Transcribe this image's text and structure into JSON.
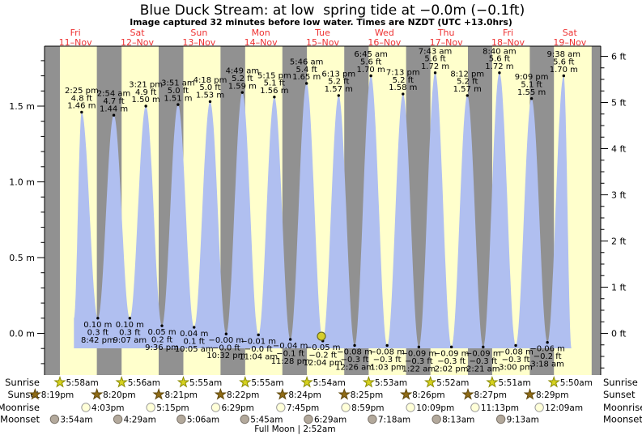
{
  "title": "Blue Duck Stream: at low  spring tide at −0.0m (−0.1ft)",
  "subtitle": "Image captured 32 minutes before low water. Times are NZDT (UTC +13.0hrs)",
  "colors": {
    "day_band": "#ffffcc",
    "night_band": "#919191",
    "tide_fill": "#b0bff0",
    "day_label_red": "#ee3333",
    "sunrise_star_fill": "#d6d21f",
    "sunrise_star_stroke": "#8a8a00",
    "sunset_star_fill": "#8f6b16",
    "sunset_star_stroke": "#5f470a",
    "moonrise_circle_fill": "#ffffd8",
    "moonrise_circle_stroke": "#999999",
    "moonset_circle_fill": "#b3a99c",
    "moonset_circle_stroke": "#7a7268",
    "current_dot_fill": "#d6ce2b",
    "current_dot_stroke": "#6b6b1c"
  },
  "chart_data": {
    "type": "area",
    "x_axis_days": [
      {
        "weekday": "Fri",
        "date": "11–Nov"
      },
      {
        "weekday": "Sat",
        "date": "12–Nov"
      },
      {
        "weekday": "Sun",
        "date": "13–Nov"
      },
      {
        "weekday": "Mon",
        "date": "14–Nov"
      },
      {
        "weekday": "Tue",
        "date": "15–Nov"
      },
      {
        "weekday": "Wed",
        "date": "16–Nov"
      },
      {
        "weekday": "Thu",
        "date": "17–Nov"
      },
      {
        "weekday": "Fri",
        "date": "18–Nov"
      },
      {
        "weekday": "Sat",
        "date": "19–Nov"
      }
    ],
    "y_axis_left": {
      "unit": "m",
      "tick_labels": [
        "0.0 m",
        "0.5 m",
        "1.0 m",
        "1.5 m"
      ],
      "tick_values": [
        0,
        0.5,
        1.0,
        1.5
      ],
      "minor_step": 0.1
    },
    "y_axis_right": {
      "unit": "ft",
      "tick_labels": [
        "0 ft",
        "1 ft",
        "2 ft",
        "3 ft",
        "4 ft",
        "5 ft",
        "6 ft"
      ],
      "tick_values": [
        0,
        1,
        2,
        3,
        4,
        5,
        6
      ],
      "minor_step": 0.25
    },
    "tide_events": [
      {
        "type": "high",
        "t_hours": 14.417,
        "height_m": 1.46,
        "labels": [
          "2:25 pm",
          "4.8 ft",
          "1.46 m"
        ]
      },
      {
        "type": "low",
        "t_hours": 20.7,
        "height_m": 0.1,
        "labels": [
          "0.10 m",
          "0.3 ft",
          "8:42 pm"
        ]
      },
      {
        "type": "high",
        "t_hours": 26.9,
        "height_m": 1.44,
        "labels": [
          "2:54 am",
          "4.7 ft",
          "1.44 m"
        ]
      },
      {
        "type": "low",
        "t_hours": 33.117,
        "height_m": 0.1,
        "labels": [
          "0.10 m",
          "0.3 ft",
          "9:07 am"
        ]
      },
      {
        "type": "high",
        "t_hours": 39.35,
        "height_m": 1.5,
        "labels": [
          "3:21 pm",
          "4.9 ft",
          "1.50 m"
        ]
      },
      {
        "type": "low",
        "t_hours": 45.6,
        "height_m": 0.05,
        "labels": [
          "0.05 m",
          "0.2 ft",
          "9:36 pm"
        ]
      },
      {
        "type": "high",
        "t_hours": 51.85,
        "height_m": 1.51,
        "labels": [
          "3:51 am",
          "5.0 ft",
          "1.51 m"
        ]
      },
      {
        "type": "low",
        "t_hours": 58.083,
        "height_m": 0.04,
        "labels": [
          "0.04 m",
          "0.1 ft",
          "10:05 am"
        ]
      },
      {
        "type": "high",
        "t_hours": 64.3,
        "height_m": 1.53,
        "labels": [
          "4:18 pm",
          "5.0 ft",
          "1.53 m"
        ]
      },
      {
        "type": "low",
        "t_hours": 70.533,
        "height_m": -0.004,
        "labels": [
          "−0.00 m",
          "−0.0 ft",
          "10:32 pm"
        ]
      },
      {
        "type": "high",
        "t_hours": 76.817,
        "height_m": 1.59,
        "labels": [
          "4:49 am",
          "5.2 ft",
          "1.59 m"
        ]
      },
      {
        "type": "low",
        "t_hours": 83.067,
        "height_m": -0.01,
        "labels": [
          "−0.01 m",
          "−0.0 ft",
          "11:04 am"
        ]
      },
      {
        "type": "high",
        "t_hours": 89.25,
        "height_m": 1.56,
        "labels": [
          "5:15 pm",
          "5.1 ft",
          "1.56 m"
        ]
      },
      {
        "type": "low",
        "t_hours": 95.467,
        "height_m": -0.04,
        "labels": [
          "−0.04 m",
          "−0.1 ft",
          "11:28 pm"
        ]
      },
      {
        "type": "high",
        "t_hours": 101.767,
        "height_m": 1.65,
        "labels": [
          "5:46 am",
          "5.4 ft",
          "1.65 m"
        ]
      },
      {
        "type": "low",
        "t_hours": 108.067,
        "height_m": -0.05,
        "labels": [
          "−0.05 m",
          "−0.2 ft",
          "12:04 pm"
        ]
      },
      {
        "type": "high",
        "t_hours": 114.217,
        "height_m": 1.57,
        "labels": [
          "6:13 pm",
          "5.2 ft",
          "1.57 m"
        ]
      },
      {
        "type": "low",
        "t_hours": 120.433,
        "height_m": -0.08,
        "labels": [
          "−0.08 m",
          "−0.3 ft",
          "12:26 am"
        ]
      },
      {
        "type": "high",
        "t_hours": 126.75,
        "height_m": 1.7,
        "labels": [
          "6:45 am",
          "5.6 ft",
          "1.70 m"
        ]
      },
      {
        "type": "low",
        "t_hours": 133.05,
        "height_m": -0.08,
        "labels": [
          "−0.08 m",
          "−0.3 ft",
          "1:03 pm"
        ]
      },
      {
        "type": "high",
        "t_hours": 139.217,
        "height_m": 1.58,
        "labels": [
          "7:13 pm",
          "5.2 ft",
          "1.58 m"
        ]
      },
      {
        "type": "low",
        "t_hours": 145.367,
        "height_m": -0.09,
        "labels": [
          "−0.09 m",
          "−0.3 ft",
          "1:22 am"
        ]
      },
      {
        "type": "high",
        "t_hours": 151.717,
        "height_m": 1.72,
        "labels": [
          "7:43 am",
          "5.6 ft",
          "1.72 m"
        ]
      },
      {
        "type": "low",
        "t_hours": 158.033,
        "height_m": -0.09,
        "labels": [
          "−0.09 m",
          "−0.3 ft",
          "2:02 pm"
        ]
      },
      {
        "type": "high",
        "t_hours": 164.2,
        "height_m": 1.57,
        "labels": [
          "8:12 pm",
          "5.2 ft",
          "1.57 m"
        ]
      },
      {
        "type": "low",
        "t_hours": 170.35,
        "height_m": -0.09,
        "labels": [
          "−0.09 m",
          "−0.3 ft",
          "2:21 am"
        ]
      },
      {
        "type": "high",
        "t_hours": 176.667,
        "height_m": 1.72,
        "labels": [
          "8:40 am",
          "5.6 ft",
          "1.72 m"
        ]
      },
      {
        "type": "low",
        "t_hours": 183.0,
        "height_m": -0.08,
        "labels": [
          "−0.08 m",
          "−0.3 ft",
          "3:00 pm"
        ]
      },
      {
        "type": "high",
        "t_hours": 189.15,
        "height_m": 1.55,
        "labels": [
          "9:09 pm",
          "5.1 ft",
          "1.55 m"
        ]
      },
      {
        "type": "low",
        "t_hours": 195.3,
        "height_m": -0.06,
        "labels": [
          "−0.06 m",
          "−0.2 ft",
          "3:18 am"
        ]
      },
      {
        "type": "high",
        "t_hours": 201.633,
        "height_m": 1.7,
        "labels": [
          "9:38 am",
          "5.6 ft",
          "1.70 m"
        ]
      }
    ],
    "series_bounds": {
      "start": {
        "t_hours": 11.417,
        "height_m": 0.1
      },
      "end": {
        "t_hours": 204.633,
        "height_m": -0.099
      }
    },
    "current_marker": {
      "t_hours": 107.533,
      "height_m": -0.019
    }
  },
  "sun_moon": {
    "row_label_sunrise": "Sunrise",
    "row_label_sunset": "Sunset",
    "row_label_moonrise": "Moonrise",
    "row_label_moonset": "Moonset",
    "sunrise": [
      {
        "time": "5:58am",
        "day": 0,
        "hour": 5.967
      },
      {
        "time": "5:56am",
        "day": 1,
        "hour": 5.933
      },
      {
        "time": "5:55am",
        "day": 2,
        "hour": 5.917
      },
      {
        "time": "5:55am",
        "day": 3,
        "hour": 5.917
      },
      {
        "time": "5:54am",
        "day": 4,
        "hour": 5.9
      },
      {
        "time": "5:53am",
        "day": 5,
        "hour": 5.883
      },
      {
        "time": "5:52am",
        "day": 6,
        "hour": 5.867
      },
      {
        "time": "5:51am",
        "day": 7,
        "hour": 5.85
      },
      {
        "time": "5:50am",
        "day": 8,
        "hour": 5.833
      }
    ],
    "sunset": [
      {
        "time": "8:19pm",
        "day": 0,
        "hour": 20.317
      },
      {
        "time": "8:20pm",
        "day": 1,
        "hour": 20.333
      },
      {
        "time": "8:21pm",
        "day": 2,
        "hour": 20.35
      },
      {
        "time": "8:22pm",
        "day": 3,
        "hour": 20.367
      },
      {
        "time": "8:24pm",
        "day": 4,
        "hour": 20.4
      },
      {
        "time": "8:25pm",
        "day": 5,
        "hour": 20.417
      },
      {
        "time": "8:26pm",
        "day": 6,
        "hour": 20.433
      },
      {
        "time": "8:27pm",
        "day": 7,
        "hour": 20.45
      },
      {
        "time": "8:29pm",
        "day": 8,
        "hour": 20.483
      }
    ],
    "moonrise": [
      {
        "time": "4:03pm",
        "day": 0,
        "hour": 16.05
      },
      {
        "time": "5:15pm",
        "day": 1,
        "hour": 17.25
      },
      {
        "time": "6:29pm",
        "day": 2,
        "hour": 18.483
      },
      {
        "time": "7:45pm",
        "day": 3,
        "hour": 19.75
      },
      {
        "time": "8:59pm",
        "day": 4,
        "hour": 20.983
      },
      {
        "time": "10:09pm",
        "day": 5,
        "hour": 22.15
      },
      {
        "time": "11:13pm",
        "day": 6,
        "hour": 23.217
      },
      {
        "time": "12:09am",
        "day": 8,
        "hour": 0.15
      }
    ],
    "moonset": [
      {
        "time": "3:54am",
        "day": 0,
        "hour": 3.9
      },
      {
        "time": "4:29am",
        "day": 1,
        "hour": 4.483
      },
      {
        "time": "5:06am",
        "day": 2,
        "hour": 5.1
      },
      {
        "time": "5:45am",
        "day": 3,
        "hour": 5.75
      },
      {
        "time": "6:29am",
        "day": 4,
        "hour": 6.483
      },
      {
        "time": "7:18am",
        "day": 5,
        "hour": 7.3
      },
      {
        "time": "8:13am",
        "day": 6,
        "hour": 8.217
      },
      {
        "time": "9:13am",
        "day": 7,
        "hour": 9.217
      }
    ],
    "full_moon": {
      "label": "Full Moon | 2:52am",
      "t_hours": 98.867
    }
  }
}
